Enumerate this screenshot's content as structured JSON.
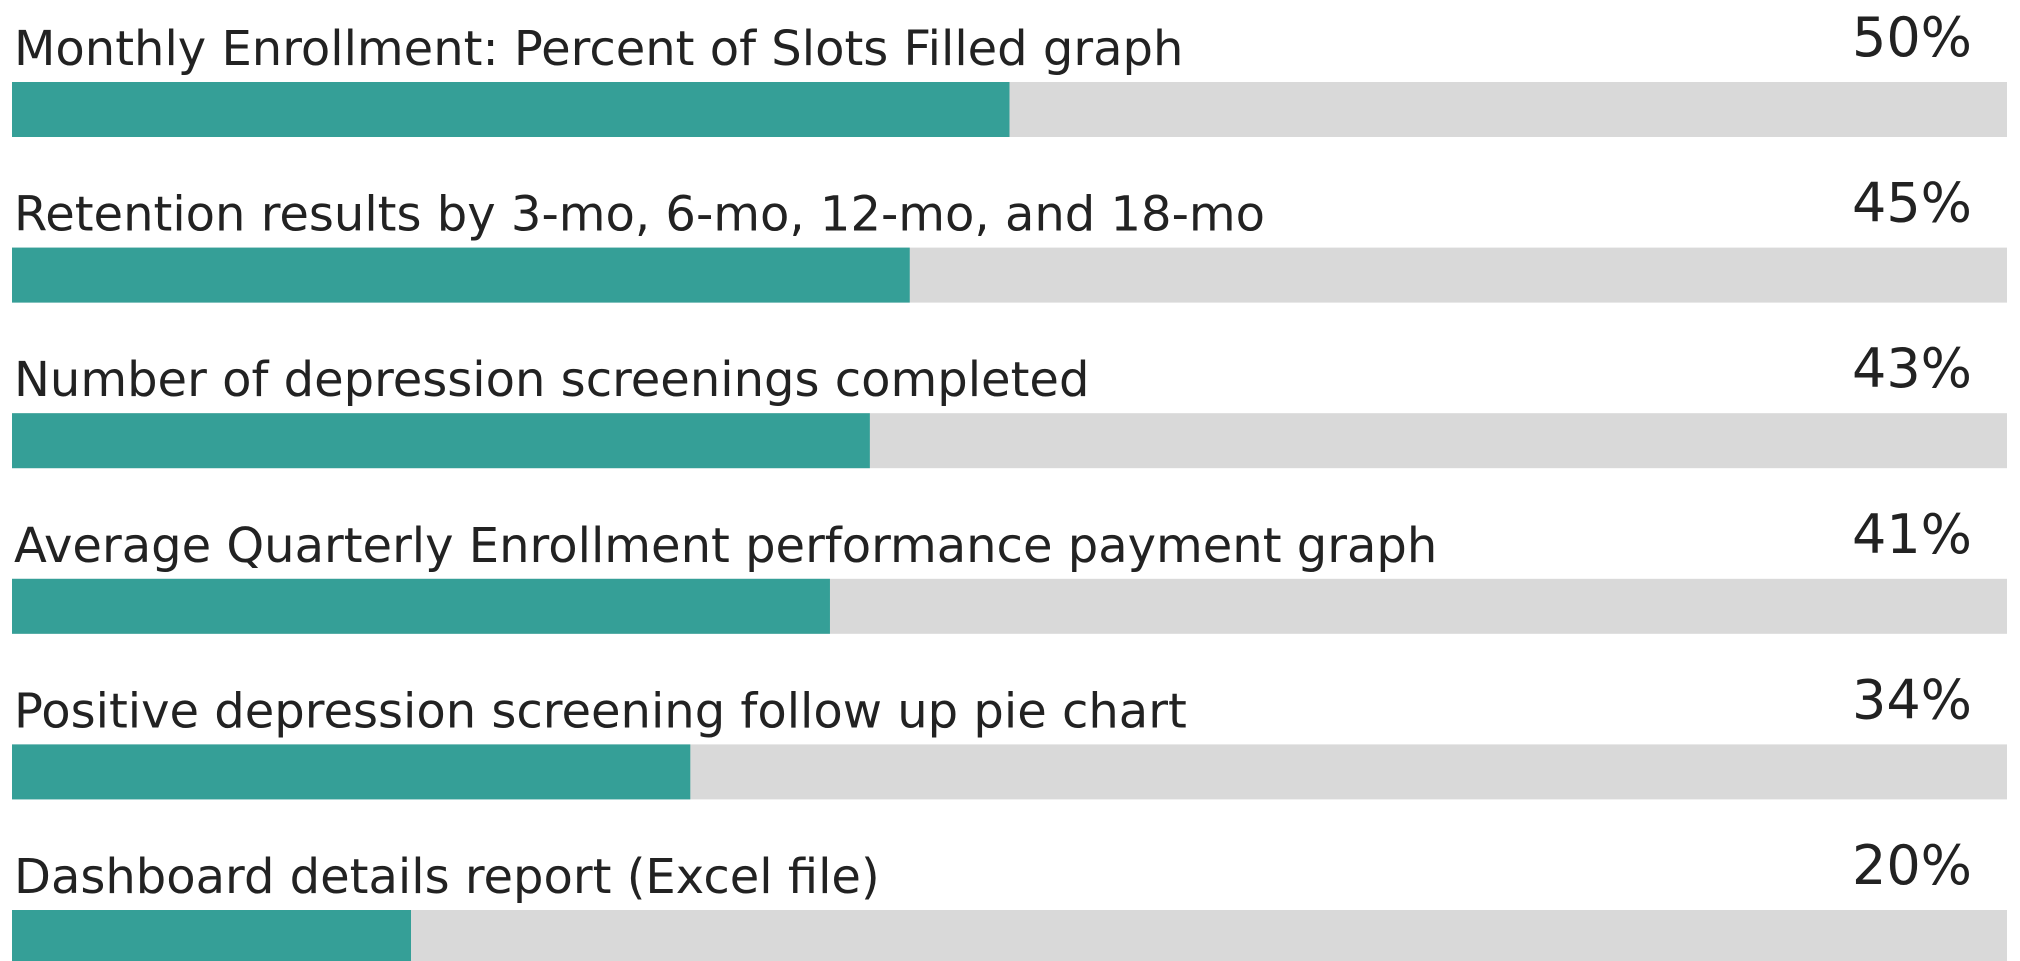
{
  "chart_data": {
    "type": "bar",
    "orientation": "horizontal",
    "categories": [
      "Monthly Enrollment: Percent of Slots Filled graph",
      "Retention results by 3-mo, 6-mo, 12-mo, and 18-mo",
      "Number of depression screenings completed",
      "Average Quarterly Enrollment performance payment graph",
      "Positive depression screening follow up pie chart",
      "Dashboard details report (Excel file)"
    ],
    "values": [
      50,
      45,
      43,
      41,
      34,
      20
    ],
    "value_labels": [
      "50%",
      "45%",
      "43%",
      "41%",
      "34%",
      "20%"
    ],
    "color": "#359f97",
    "track_color": "#d9d9d9",
    "xlim": [
      0,
      100
    ]
  }
}
